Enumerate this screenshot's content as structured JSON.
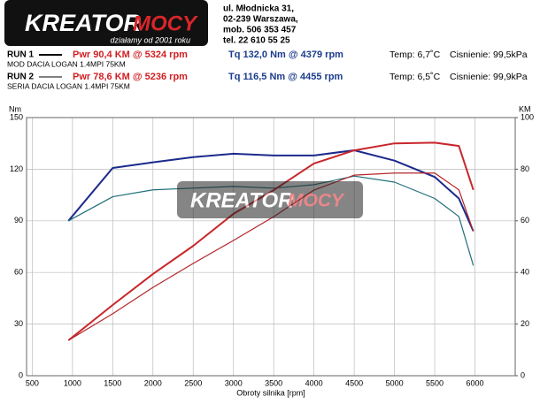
{
  "header": {
    "logo": {
      "brand": "KREATOR",
      "accent": "MOCY",
      "tagline": "działamy od 2001 roku"
    },
    "address": [
      "ul. Młodnicka 31,",
      "02-239  Warszawa,",
      "mob.  506 353 457",
      "tel.  22 610 55 25"
    ]
  },
  "runs": [
    {
      "name": "RUN 1",
      "car": "MOD DACIA LOGAN 1.4MPI 75KM",
      "pwr": "Pwr  90,4 KM @ 5324 rpm",
      "tq": "Tq 132,0 Nm @ 4379 rpm",
      "temp": "Temp: 6,7˚C",
      "pressure": "Cisnienie: 99,5kPa"
    },
    {
      "name": "RUN 2",
      "car": "SERIA DACIA LOGAN 1.4MPI 75KM",
      "pwr": "Pwr  78,6 KM @ 5236 rpm",
      "tq": "Tq 116,5 Nm @ 4455 rpm",
      "temp": "Temp: 6,5˚C",
      "pressure": "Cisnienie: 99,9kPa"
    }
  ],
  "chart_data": {
    "type": "line",
    "ylabel": "Nm",
    "y2label": "KM",
    "xlabel": "Obroty silnika [rpm]",
    "x": [
      950,
      1500,
      2000,
      2500,
      3000,
      3500,
      4000,
      4500,
      5000,
      5500,
      5800,
      5980
    ],
    "xlim": [
      430,
      6500
    ],
    "xticks": [
      500,
      1000,
      1500,
      2000,
      2500,
      3000,
      3500,
      4000,
      4500,
      5000,
      5500,
      6000
    ],
    "ylim": [
      0,
      150
    ],
    "yticks": [
      0,
      30,
      60,
      90,
      120,
      150
    ],
    "y2lim": [
      0,
      100
    ],
    "y2ticks": [
      0,
      20,
      40,
      60,
      80,
      100
    ],
    "grid": true,
    "series": [
      {
        "color": "#1c2a8c",
        "width": 2,
        "values": [
          90,
          120.7,
          124,
          127,
          129,
          128,
          128,
          131,
          125,
          115.5,
          103,
          84
        ]
      },
      {
        "color": "#1f6f7a",
        "width": 1.2,
        "values": [
          90,
          104,
          108,
          109,
          110,
          109,
          111,
          116,
          112.5,
          103,
          92.5,
          64
        ]
      },
      {
        "color": "#c8262a",
        "width": 2,
        "axis": "y2",
        "values": [
          13.7,
          27.4,
          39.4,
          50.3,
          62.7,
          71.9,
          82.2,
          87.3,
          90,
          90.3,
          89,
          72
        ]
      },
      {
        "color": "#b3262a",
        "width": 1.2,
        "axis": "y2",
        "values": [
          13.7,
          24,
          34.2,
          43.5,
          52.4,
          61.6,
          71.9,
          77.7,
          78.5,
          78.5,
          72,
          56
        ]
      }
    ]
  }
}
